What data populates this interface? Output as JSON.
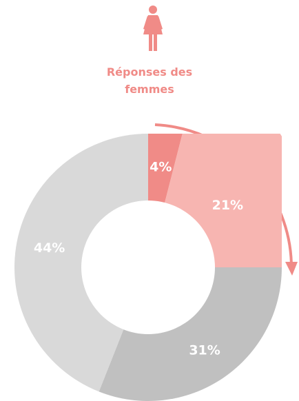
{
  "chart_data": {
    "type": "donut",
    "title": [
      "Réponses des",
      "femmes"
    ],
    "values": [
      4,
      21,
      31,
      44
    ],
    "value_labels": [
      "4%",
      "21%",
      "31%",
      "44%"
    ],
    "colors": [
      "#f08b87",
      "#f7b5b1",
      "#c0c0c0",
      "#d9d9d9"
    ],
    "highlighted": [
      true,
      true,
      false,
      false
    ]
  }
}
